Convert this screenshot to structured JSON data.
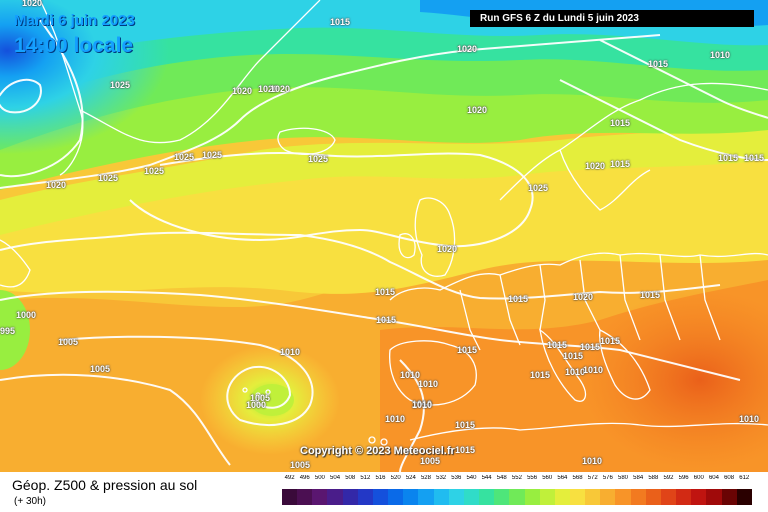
{
  "header": {
    "date": "Mardi 6 juin 2023",
    "local_time": "14:00 locale",
    "run": "Run GFS 6 Z du Lundi 5 juin 2023"
  },
  "copyright": "Copyright © 2023 Meteociel.fr",
  "footer": {
    "title": "Géop. Z500 & pression au sol",
    "lead": "(+ 30h)"
  },
  "legend": {
    "values": [
      "492",
      "496",
      "500",
      "504",
      "508",
      "512",
      "516",
      "520",
      "524",
      "528",
      "532",
      "536",
      "540",
      "544",
      "548",
      "552",
      "556",
      "560",
      "564",
      "568",
      "572",
      "576",
      "580",
      "584",
      "588",
      "592",
      "596",
      "600",
      "604",
      "608",
      "612"
    ],
    "colors": [
      "#3a0a3a",
      "#4b0f52",
      "#5a1670",
      "#4a1d8a",
      "#3328a8",
      "#2338c6",
      "#1450dc",
      "#0a6ae8",
      "#0a84ee",
      "#14a0f2",
      "#20bcf0",
      "#2ed2e6",
      "#30dcc8",
      "#36e2a0",
      "#4ee67a",
      "#70ea58",
      "#98ee40",
      "#c0f03a",
      "#e4ee3c",
      "#f8e040",
      "#f8c838",
      "#f8ae30",
      "#f89428",
      "#f27a20",
      "#ea601a",
      "#e04418",
      "#d22a14",
      "#c01410",
      "#a00a0a",
      "#6a0404",
      "#2a0000"
    ]
  },
  "isobars": [
    {
      "v": "1020",
      "k": "a"
    },
    {
      "v": "1015",
      "k": "b"
    },
    {
      "v": "1020",
      "k": "c"
    },
    {
      "v": "1025",
      "k": "d"
    },
    {
      "v": "1020",
      "k": "e"
    },
    {
      "v": "1020",
      "k": "f"
    },
    {
      "v": "1020",
      "k": "g"
    },
    {
      "v": "1025",
      "k": "h"
    },
    {
      "v": "1025",
      "k": "i"
    },
    {
      "v": "1025",
      "k": "j"
    },
    {
      "v": "1025",
      "k": "k"
    },
    {
      "v": "1020",
      "k": "l"
    },
    {
      "v": "1025",
      "k": "m"
    },
    {
      "v": "1015",
      "k": "n"
    },
    {
      "v": "1010",
      "k": "o"
    },
    {
      "v": "1020",
      "k": "p"
    },
    {
      "v": "1015",
      "k": "q"
    },
    {
      "v": "1015",
      "k": "r"
    },
    {
      "v": "1015",
      "k": "s"
    },
    {
      "v": "1020",
      "k": "t"
    },
    {
      "v": "1015",
      "k": "u"
    },
    {
      "v": "1025",
      "k": "v"
    },
    {
      "v": "1020",
      "k": "w"
    },
    {
      "v": "1015",
      "k": "x"
    },
    {
      "v": "1015",
      "k": "y"
    },
    {
      "v": "1020",
      "k": "z"
    },
    {
      "v": "1015",
      "k": "a2"
    },
    {
      "v": "1015",
      "k": "b2"
    },
    {
      "v": "1015",
      "k": "c2"
    },
    {
      "v": "1015",
      "k": "d2"
    },
    {
      "v": "1015",
      "k": "e2"
    },
    {
      "v": "1015",
      "k": "f2"
    },
    {
      "v": "1015",
      "k": "g2"
    },
    {
      "v": "1010",
      "k": "h2"
    },
    {
      "v": "1010",
      "k": "i2"
    },
    {
      "v": "1010",
      "k": "j2"
    },
    {
      "v": "1010",
      "k": "k2"
    },
    {
      "v": "1015",
      "k": "l2"
    },
    {
      "v": "1010",
      "k": "m2"
    },
    {
      "v": "1005",
      "k": "n2"
    },
    {
      "v": "1005",
      "k": "o2"
    },
    {
      "v": "1005",
      "k": "p2"
    },
    {
      "v": "1010",
      "k": "q2"
    },
    {
      "v": "1000",
      "k": "r2"
    },
    {
      "v": "995",
      "k": "s2"
    },
    {
      "v": "1000",
      "k": "t2"
    },
    {
      "v": "1005",
      "k": "u2"
    },
    {
      "v": "1010",
      "k": "v2"
    },
    {
      "v": "1010",
      "k": "w2"
    },
    {
      "v": "1015",
      "k": "x2"
    },
    {
      "v": "1005",
      "k": "y2"
    },
    {
      "v": "1015",
      "k": "z2"
    },
    {
      "v": "1010",
      "k": "a3"
    },
    {
      "v": "1010",
      "k": "b3"
    }
  ]
}
